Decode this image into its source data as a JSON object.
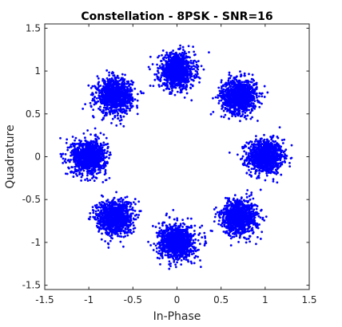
{
  "chart_data": {
    "type": "scatter",
    "title": "Constellation - 8PSK - SNR=16",
    "xlabel": "In-Phase",
    "ylabel": "Quadrature",
    "xlim": [
      -1.5,
      1.5
    ],
    "ylim": [
      -1.55,
      1.55
    ],
    "xticks": [
      -1.5,
      -1,
      -0.5,
      0,
      0.5,
      1,
      1.5
    ],
    "xtick_labels": [
      "-1.5",
      "-1",
      "-0.5",
      "0",
      "0.5",
      "1",
      "1.5"
    ],
    "yticks": [
      -1.5,
      -1,
      -0.5,
      0,
      0.5,
      1,
      1.5
    ],
    "ytick_labels": [
      "-1.5",
      "-1",
      "-0.5",
      "0",
      "0.5",
      "1",
      "1.5"
    ],
    "grid": false,
    "marker_color": "#0000ff",
    "cluster_centers": [
      [
        1,
        0
      ],
      [
        0.707,
        0.707
      ],
      [
        0,
        1
      ],
      [
        -0.707,
        0.707
      ],
      [
        -1,
        0
      ],
      [
        -0.707,
        -0.707
      ],
      [
        0,
        -1
      ],
      [
        0.707,
        -0.707
      ]
    ],
    "cluster_spread_std": 0.1,
    "points_per_cluster": 1000
  }
}
